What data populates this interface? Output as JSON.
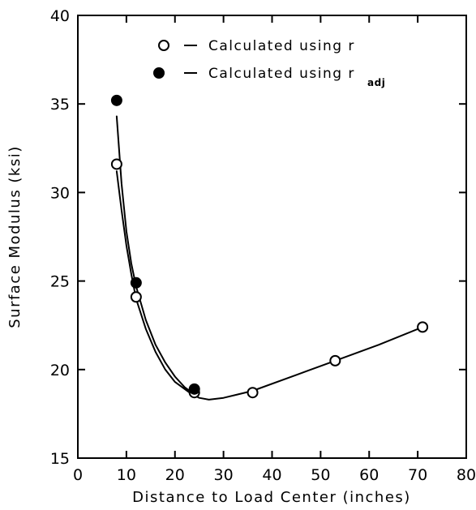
{
  "chart_data": {
    "type": "scatter",
    "title": "",
    "xlabel": "Distance to Load Center (inches)",
    "ylabel": "Surface Modulus (ksi)",
    "xlim": [
      0,
      80
    ],
    "ylim": [
      15,
      40
    ],
    "x_ticks": [
      0,
      10,
      20,
      30,
      40,
      50,
      60,
      70,
      80
    ],
    "y_ticks": [
      15,
      20,
      25,
      30,
      35,
      40
    ],
    "grid": false,
    "legend_position": "top-right",
    "series": [
      {
        "name": "Calculated using r",
        "legend_text": "Calculated using r",
        "legend_subscript": "",
        "marker": "open-circle",
        "points": [
          {
            "x": 8,
            "y": 31.6
          },
          {
            "x": 12,
            "y": 24.1
          },
          {
            "x": 24,
            "y": 18.7
          },
          {
            "x": 36,
            "y": 18.7
          },
          {
            "x": 53,
            "y": 20.5
          },
          {
            "x": 71,
            "y": 22.4
          }
        ],
        "fit_curve": [
          {
            "x": 8,
            "y": 31.2
          },
          {
            "x": 9,
            "y": 29.0
          },
          {
            "x": 10,
            "y": 27.0
          },
          {
            "x": 11,
            "y": 25.4
          },
          {
            "x": 12,
            "y": 24.0
          },
          {
            "x": 14,
            "y": 22.3
          },
          {
            "x": 16,
            "y": 21.0
          },
          {
            "x": 18,
            "y": 20.0
          },
          {
            "x": 20,
            "y": 19.3
          },
          {
            "x": 23,
            "y": 18.7
          },
          {
            "x": 25,
            "y": 18.4
          },
          {
            "x": 27,
            "y": 18.3
          },
          {
            "x": 30,
            "y": 18.4
          },
          {
            "x": 33,
            "y": 18.6
          },
          {
            "x": 36,
            "y": 18.8
          },
          {
            "x": 45,
            "y": 19.7
          },
          {
            "x": 53,
            "y": 20.5
          },
          {
            "x": 62,
            "y": 21.4
          },
          {
            "x": 71,
            "y": 22.4
          }
        ]
      },
      {
        "name": "Calculated using r_adj",
        "legend_text": "Calculated using r",
        "legend_subscript": "adj",
        "marker": "filled-circle",
        "points": [
          {
            "x": 8,
            "y": 35.2
          },
          {
            "x": 12,
            "y": 24.9
          },
          {
            "x": 24,
            "y": 18.9
          }
        ],
        "fit_curve": [
          {
            "x": 8,
            "y": 34.3
          },
          {
            "x": 9,
            "y": 30.5
          },
          {
            "x": 10,
            "y": 27.8
          },
          {
            "x": 11,
            "y": 26.0
          },
          {
            "x": 12,
            "y": 24.7
          },
          {
            "x": 14,
            "y": 22.8
          },
          {
            "x": 16,
            "y": 21.4
          },
          {
            "x": 18,
            "y": 20.4
          },
          {
            "x": 20,
            "y": 19.6
          },
          {
            "x": 22,
            "y": 19.0
          },
          {
            "x": 23.5,
            "y": 18.7
          }
        ]
      }
    ]
  }
}
